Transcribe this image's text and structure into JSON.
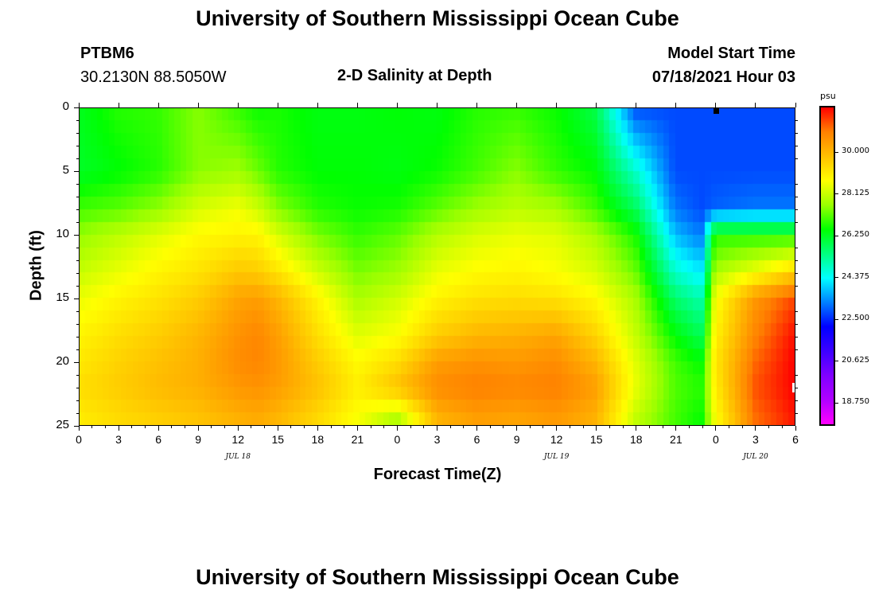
{
  "header": {
    "title": "University of Southern Mississippi Ocean Cube",
    "footer_title": "University of Southern Mississippi Ocean Cube",
    "station_id": "PTBM6",
    "station_coords": "30.2130N  88.5050W",
    "plot_title": "2-D Salinity at Depth",
    "model_label": "Model Start Time",
    "model_time": "07/18/2021 Hour 03"
  },
  "chart_data": {
    "type": "heatmap",
    "title": "2-D Salinity at Depth",
    "xlabel": "Forecast Time(Z)",
    "ylabel": "Depth (ft)",
    "units": "psu",
    "x_hours_range": [
      0,
      54
    ],
    "y_depth_range": [
      0,
      25
    ],
    "x_ticks": [
      "0",
      "3",
      "6",
      "9",
      "12",
      "15",
      "18",
      "21",
      "0",
      "3",
      "6",
      "9",
      "12",
      "15",
      "18",
      "21",
      "0",
      "3",
      "6"
    ],
    "x_tick_hours": [
      0,
      3,
      6,
      9,
      12,
      15,
      18,
      21,
      24,
      27,
      30,
      33,
      36,
      39,
      42,
      45,
      48,
      51,
      54
    ],
    "y_ticks": [
      "0",
      "5",
      "10",
      "15",
      "20",
      "25"
    ],
    "y_tick_depths": [
      0,
      5,
      10,
      15,
      20,
      25
    ],
    "date_labels": [
      {
        "text": "JUL 18",
        "hour": 12
      },
      {
        "text": "JUL 19",
        "hour": 36
      },
      {
        "text": "JUL 20",
        "hour": 51
      }
    ],
    "colorbar": {
      "range": [
        17.8,
        32.0
      ],
      "ticks": [
        "30.000",
        "28.125",
        "26.250",
        "24.375",
        "22.500",
        "20.625",
        "18.750"
      ],
      "tick_values": [
        30.0,
        28.125,
        26.25,
        24.375,
        22.5,
        20.625,
        18.75
      ],
      "colors": [
        "#ff00ff",
        "#b000ff",
        "#8000ff",
        "#3c00ff",
        "#0000ff",
        "#0080ff",
        "#00ffff",
        "#00ff7f",
        "#00ff00",
        "#9aff00",
        "#ffff00",
        "#ffc000",
        "#ff8000",
        "#ff0000"
      ]
    },
    "grid_hours": [
      0,
      3,
      6,
      9,
      12,
      13.5,
      15,
      18,
      21,
      24,
      27,
      30,
      33,
      36,
      39,
      42,
      45,
      47,
      48,
      51,
      54
    ],
    "grid_depths": [
      0,
      5,
      8,
      10,
      13,
      15,
      18,
      20,
      22,
      25
    ],
    "salinity": [
      [
        26.3,
        26.8,
        26.9,
        27.5,
        26.9,
        26.6,
        26.7,
        26.4,
        26.4,
        26.5,
        26.4,
        26.8,
        26.9,
        26.6,
        25.9,
        22.8,
        22.8,
        22.8,
        22.8,
        22.8,
        22.8
      ],
      [
        26.2,
        26.5,
        26.8,
        27.5,
        27.7,
        27.3,
        26.8,
        26.5,
        26.5,
        26.4,
        26.6,
        27.0,
        27.5,
        26.9,
        26.5,
        24.8,
        22.8,
        22.8,
        22.8,
        22.8,
        22.8
      ],
      [
        27.0,
        27.2,
        27.6,
        28.3,
        28.6,
        28.2,
        27.5,
        26.8,
        26.6,
        26.7,
        27.2,
        27.7,
        28.0,
        27.8,
        27.0,
        25.8,
        23.2,
        22.8,
        23.0,
        23.2,
        23.2
      ],
      [
        27.6,
        28.0,
        28.4,
        28.8,
        28.9,
        28.9,
        28.3,
        27.4,
        26.9,
        27.2,
        27.9,
        28.3,
        28.5,
        28.4,
        27.8,
        26.7,
        23.8,
        23.2,
        26.8,
        26.8,
        26.8
      ],
      [
        28.1,
        28.5,
        28.9,
        29.2,
        29.7,
        29.6,
        29.2,
        28.2,
        27.4,
        27.7,
        28.5,
        28.8,
        28.9,
        28.7,
        28.3,
        27.3,
        24.8,
        24.2,
        27.8,
        28.6,
        29.5
      ],
      [
        28.5,
        28.9,
        29.2,
        29.6,
        30.3,
        30.4,
        30.0,
        28.9,
        27.8,
        28.2,
        28.9,
        29.2,
        29.3,
        29.2,
        28.8,
        27.8,
        25.6,
        25.0,
        28.6,
        30.5,
        31.4
      ],
      [
        28.9,
        29.3,
        29.6,
        30.0,
        30.6,
        30.8,
        30.4,
        29.3,
        28.4,
        28.7,
        29.6,
        30.0,
        30.1,
        30.3,
        29.5,
        28.1,
        26.5,
        25.8,
        28.9,
        30.8,
        31.9
      ],
      [
        29.1,
        29.5,
        29.8,
        30.1,
        30.7,
        30.8,
        30.5,
        29.6,
        28.8,
        29.3,
        30.4,
        30.6,
        30.5,
        30.7,
        30.0,
        28.4,
        27.0,
        26.5,
        29.1,
        31.1,
        32.0
      ],
      [
        29.3,
        29.6,
        29.9,
        30.1,
        30.5,
        30.6,
        30.4,
        29.8,
        29.0,
        29.8,
        30.7,
        30.9,
        30.8,
        30.9,
        30.4,
        28.5,
        27.1,
        26.8,
        29.0,
        31.3,
        32.0
      ],
      [
        29.0,
        29.3,
        29.5,
        29.7,
        30.0,
        30.1,
        29.9,
        29.3,
        28.6,
        27.5,
        29.9,
        30.3,
        30.2,
        30.4,
        30.0,
        28.0,
        27.0,
        26.5,
        28.6,
        31.0,
        31.8
      ]
    ]
  }
}
